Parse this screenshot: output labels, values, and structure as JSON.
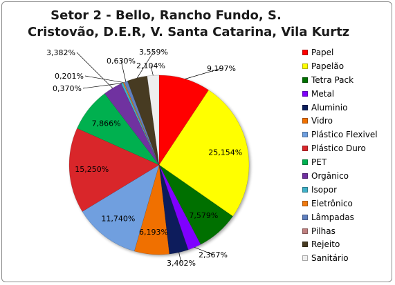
{
  "chart_data": {
    "type": "pie",
    "title_line1": "Setor  2  -  Bello, Rancho Fundo, S.",
    "title_line2": "Cristovão, D.E.R,  V. Santa Catarina, Vila Kurtz",
    "legend_position": "right",
    "categories": [
      "Papel",
      "Papelão",
      "Tetra Pack",
      "Metal",
      "Aluminio",
      "Vidro",
      "Plástico Flexivel",
      "Plástico Duro",
      "PET",
      "Orgânico",
      "Isopor",
      "Eletrônico",
      "Lâmpadas",
      "Pilhas",
      "Rejeito",
      "Sanitário"
    ],
    "values": [
      9.197,
      25.154,
      7.579,
      2.367,
      3.402,
      6.193,
      11.74,
      15.25,
      7.866,
      3.382,
      0.37,
      0.201,
      0.63,
      0.0,
      3.559,
      2.104
    ],
    "labels": [
      "9,197%",
      "25,154%",
      "7,579%",
      "2,367%",
      "3,402%",
      "6,193%",
      "11,740%",
      "15,250%",
      "7,866%",
      "3,382%",
      "0,370%",
      "0,201%",
      "0,630%",
      "",
      "3,559%",
      "2,104%"
    ],
    "colors": [
      "#ff0000",
      "#ffff00",
      "#007000",
      "#7f00ff",
      "#0a1d5c",
      "#f07000",
      "#6f9fdf",
      "#d9262b",
      "#00b050",
      "#7030a0",
      "#3fb0c8",
      "#f07a10",
      "#5f7fbf",
      "#c08080",
      "#473b22",
      "#eeeeee"
    ]
  }
}
